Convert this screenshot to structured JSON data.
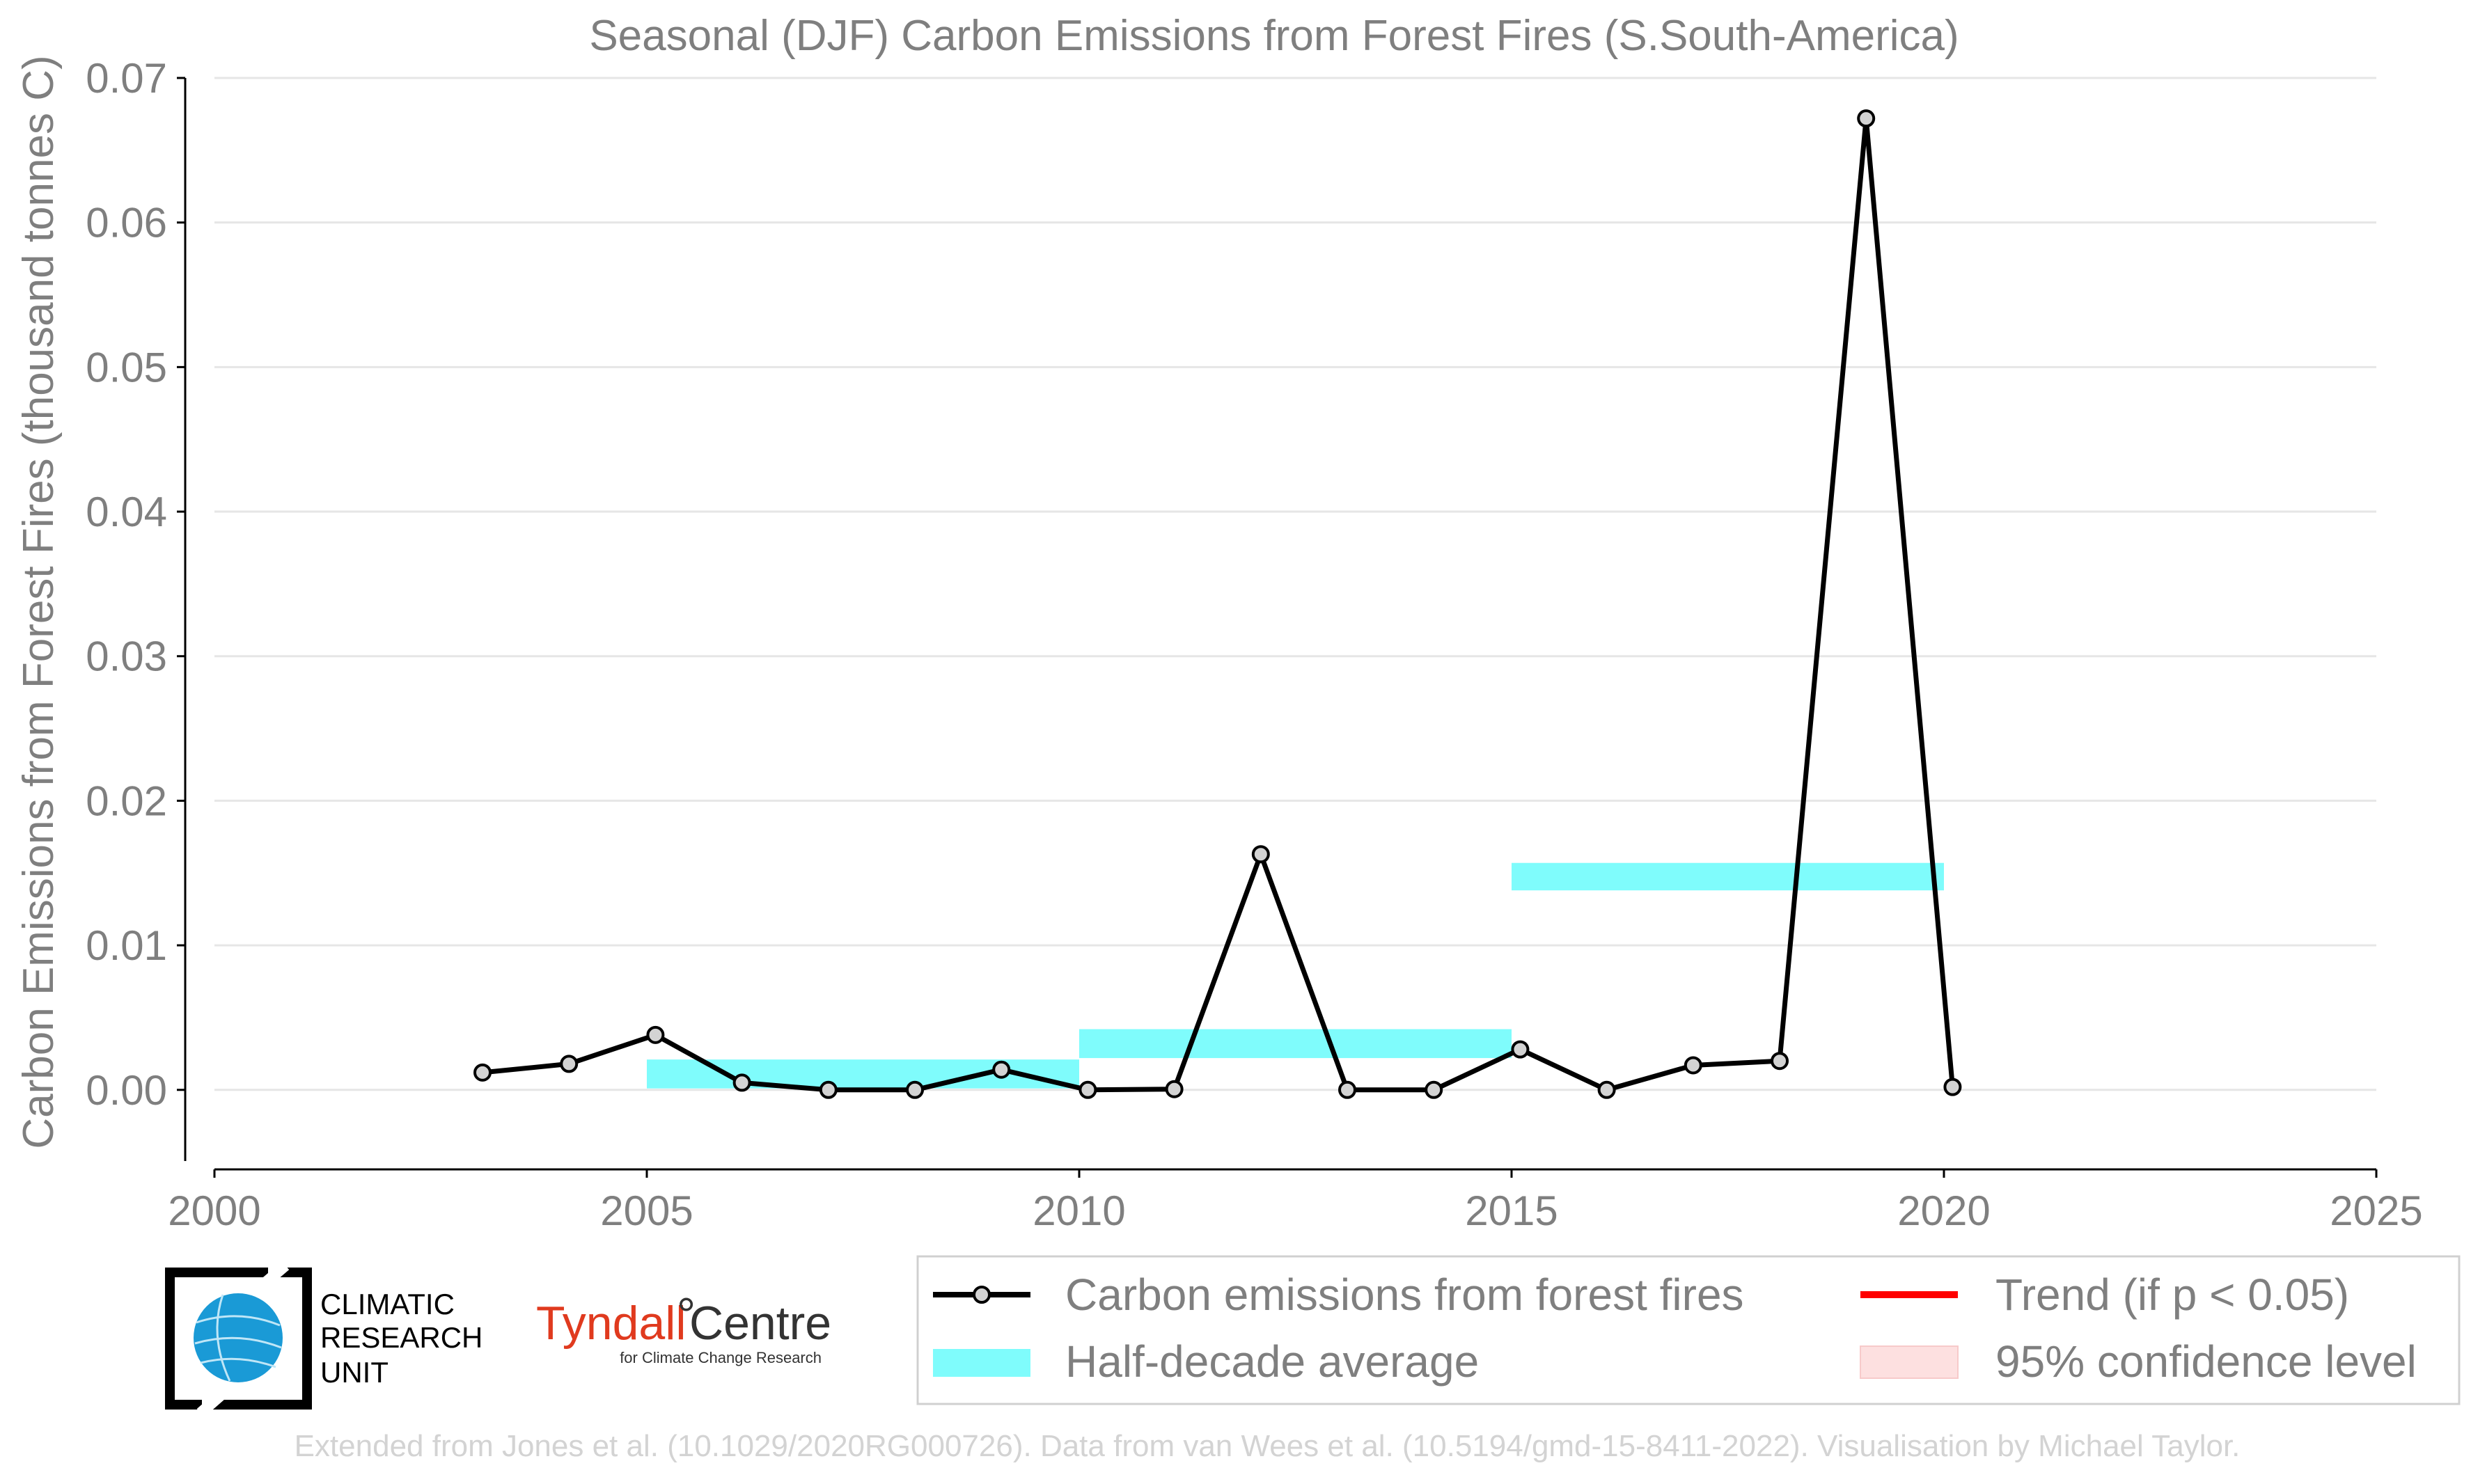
{
  "chart_data": {
    "type": "line",
    "title": "Seasonal (DJF) Carbon Emissions from Forest Fires (S.South-America)",
    "xlabel": "",
    "ylabel": "Carbon Emissions from Forest Fires (thousand tonnes C)",
    "xlim": [
      2000,
      2025
    ],
    "ylim": [
      -0.0055,
      0.07
    ],
    "x_ticks": [
      2000,
      2005,
      2010,
      2015,
      2020,
      2025
    ],
    "y_ticks": [
      0.0,
      0.01,
      0.02,
      0.03,
      0.04,
      0.05,
      0.06,
      0.07
    ],
    "y_tick_labels": [
      "0.00",
      "0.01",
      "0.02",
      "0.03",
      "0.04",
      "0.05",
      "0.06",
      "0.07"
    ],
    "grid": "horizontal",
    "legend_position": "bottom-right",
    "series": [
      {
        "name": "Carbon emissions from forest fires",
        "color": "#000000",
        "marker_fill": "#d3d3d3",
        "x": [
          2003.1,
          2004.1,
          2005.1,
          2006.1,
          2007.1,
          2008.1,
          2009.1,
          2010.1,
          2011.1,
          2012.1,
          2013.1,
          2014.1,
          2015.1,
          2016.1,
          2017.1,
          2018.1,
          2019.1,
          2020.1
        ],
        "y": [
          0.0012,
          0.0018,
          0.0038,
          0.0005,
          0.0,
          0.0,
          0.0014,
          0.0,
          5e-05,
          0.0163,
          0.0,
          0.0,
          0.0028,
          0.0,
          0.0017,
          0.002,
          0.0672,
          0.0002
        ]
      }
    ],
    "half_decade_averages": {
      "name": "Half-decade average",
      "color": "#7ffcfc",
      "segments": [
        {
          "start": 2005,
          "end": 2010,
          "low": 0.0001,
          "high": 0.0021
        },
        {
          "start": 2010,
          "end": 2015,
          "low": 0.0022,
          "high": 0.0042
        },
        {
          "start": 2015,
          "end": 2020,
          "low": 0.0138,
          "high": 0.0157
        }
      ]
    },
    "legend": [
      {
        "label": "Carbon emissions from forest fires",
        "symbol": "line-marker",
        "color": "#000000"
      },
      {
        "label": "Half-decade average",
        "symbol": "band",
        "color": "#7ffcfc"
      },
      {
        "label": "Trend (if p < 0.05)",
        "symbol": "line",
        "color": "#ff0000"
      },
      {
        "label": "95% confidence level",
        "symbol": "band",
        "color": "#fde0e0"
      }
    ]
  },
  "logos": {
    "cru_lines": [
      "CLIMATIC",
      "RESEARCH",
      "UNIT"
    ],
    "tyndall_name": "Tyndall",
    "tyndall_suffix": "Centre",
    "tyndall_sub": "for Climate Change Research"
  },
  "credit": "Extended from Jones et al. (10.1029/2020RG000726). Data from van Wees et al. (10.5194/gmd-15-8411-2022). Visualisation by Michael Taylor.",
  "colors": {
    "text": "#7f7f7f",
    "grid": "#e6e6e6",
    "series": "#000000",
    "half_decade": "#7ffcfc",
    "trend": "#ff0000",
    "confidence": "#fde0e0",
    "tyndall": "#e03a1e",
    "cru_blue": "#1a9ad6"
  }
}
